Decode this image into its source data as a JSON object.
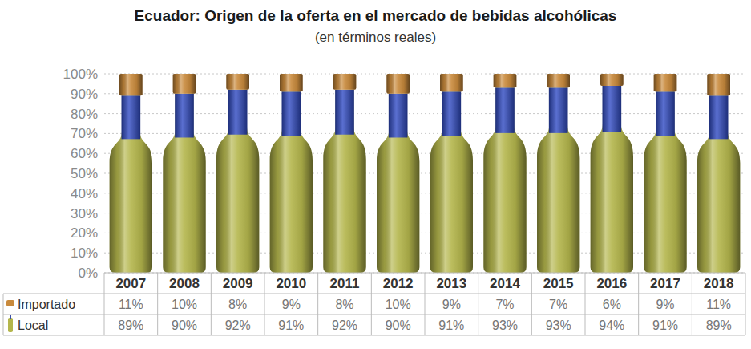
{
  "chart_data": {
    "type": "bar",
    "stacked": true,
    "title": "Ecuador: Origen de la oferta en el mercado de bebidas alcohólicas",
    "subtitle": "(en términos reales)",
    "categories": [
      "2007",
      "2008",
      "2009",
      "2010",
      "2011",
      "2012",
      "2013",
      "2014",
      "2015",
      "2016",
      "2017",
      "2018"
    ],
    "ylim": [
      0,
      100
    ],
    "yticks": [
      {
        "value": 0,
        "label": "0%"
      },
      {
        "value": 10,
        "label": "10%"
      },
      {
        "value": 20,
        "label": "20%"
      },
      {
        "value": 30,
        "label": "30%"
      },
      {
        "value": 40,
        "label": "40%"
      },
      {
        "value": 50,
        "label": "50%"
      },
      {
        "value": 60,
        "label": "60%"
      },
      {
        "value": 70,
        "label": "70%"
      },
      {
        "value": 80,
        "label": "80%"
      },
      {
        "value": 90,
        "label": "90%"
      },
      {
        "value": 100,
        "label": "100%"
      }
    ],
    "grid": true,
    "legend": "bottom-left",
    "data_labels": true,
    "series": [
      {
        "name": "Local",
        "color": "#b4b64c",
        "values": [
          89,
          90,
          92,
          91,
          92,
          90,
          91,
          93,
          93,
          94,
          91,
          89
        ],
        "value_labels": [
          "89%",
          "90%",
          "92%",
          "91%",
          "92%",
          "90%",
          "91%",
          "93%",
          "93%",
          "94%",
          "91%",
          "89%"
        ]
      },
      {
        "name": "Importado",
        "color": "#c98a3c",
        "values": [
          11,
          10,
          8,
          9,
          8,
          10,
          9,
          7,
          7,
          6,
          9,
          11
        ],
        "value_labels": [
          "11%",
          "10%",
          "8%",
          "9%",
          "8%",
          "10%",
          "9%",
          "7%",
          "7%",
          "6%",
          "9%",
          "11%"
        ]
      }
    ]
  }
}
